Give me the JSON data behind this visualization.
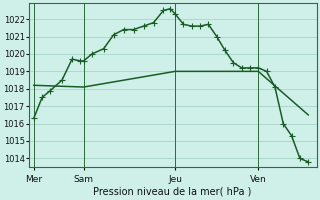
{
  "title": "Pression niveau de la mer( hPa )",
  "bg_color": "#cff0e8",
  "grid_color": "#9ecfbf",
  "line_color": "#1a5c28",
  "ylim": [
    1013.5,
    1022.9
  ],
  "yticks": [
    1014,
    1015,
    1016,
    1017,
    1018,
    1019,
    1020,
    1021,
    1022
  ],
  "day_labels": [
    "Mer",
    "Sam",
    "Jeu",
    "Ven"
  ],
  "day_positions": [
    0,
    3,
    8.5,
    13.5
  ],
  "vline_x": [
    0,
    3,
    8.5,
    13.5
  ],
  "line1_x": [
    0,
    0.5,
    1,
    1.7,
    2.3,
    2.8,
    3.0,
    3.5,
    4.2,
    4.8,
    5.4,
    6.0,
    6.6,
    7.2,
    7.8,
    8.2,
    8.5,
    9.0,
    9.5,
    10.0,
    10.5,
    11.0,
    11.5,
    12.0,
    12.5,
    13.0,
    13.5,
    14.0,
    14.5,
    15.0,
    15.5,
    16.0,
    16.5
  ],
  "line1_y": [
    1016.3,
    1017.5,
    1017.9,
    1018.5,
    1019.7,
    1019.6,
    1019.6,
    1020.0,
    1020.3,
    1021.1,
    1021.4,
    1021.4,
    1021.6,
    1021.8,
    1022.5,
    1022.6,
    1022.3,
    1021.7,
    1021.6,
    1021.6,
    1021.7,
    1021.0,
    1020.2,
    1019.5,
    1019.2,
    1019.2,
    1019.2,
    1019.0,
    1018.1,
    1016.0,
    1015.3,
    1014.0,
    1013.8
  ],
  "line2_x": [
    0,
    3.0,
    8.5,
    13.5,
    16.5
  ],
  "line2_y": [
    1018.2,
    1018.1,
    1019.0,
    1019.0,
    1016.5
  ],
  "marker_size": 2.5,
  "line_width": 1.1,
  "xlabel_fontsize": 7.0,
  "ytick_fontsize": 6.0,
  "xtick_fontsize": 6.5
}
